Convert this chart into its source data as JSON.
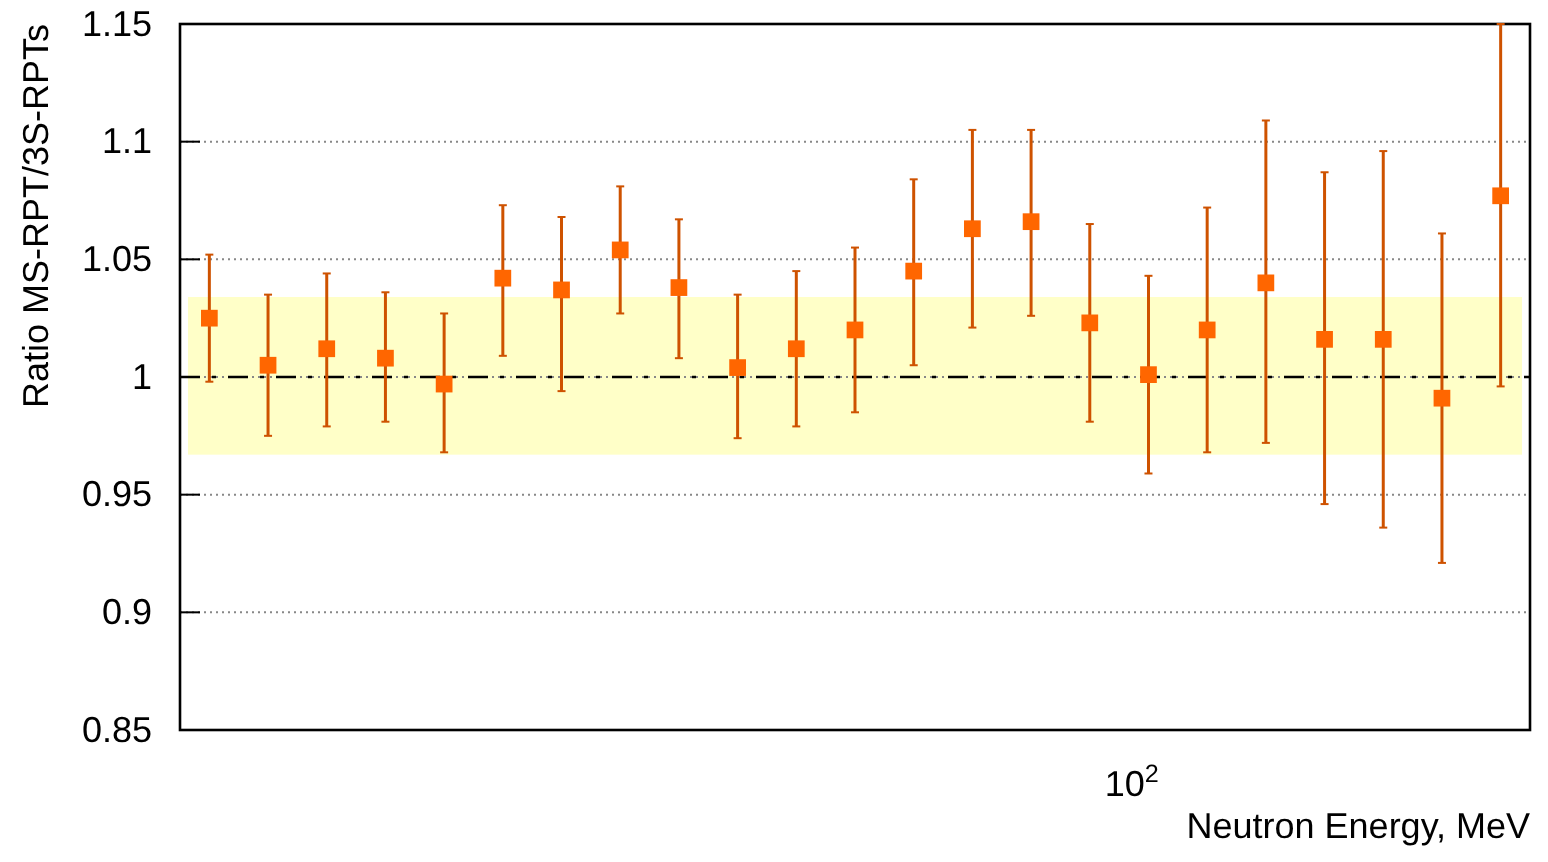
{
  "chart_data": {
    "type": "scatter",
    "xlabel": "Neutron Energy, MeV",
    "ylabel": "Ratio MS-RPT/3S-RPTs",
    "grid": "y",
    "marker": "square",
    "categories": [
      null,
      null,
      null,
      null,
      null,
      null,
      null,
      null,
      null,
      null,
      null,
      null,
      null,
      null,
      null,
      null,
      null,
      null,
      null,
      null,
      null,
      null,
      null
    ],
    "ylim": [
      0.85,
      1.15
    ],
    "yticks": [
      0.85,
      0.9,
      0.95,
      1,
      1.05,
      1.1,
      1.15
    ],
    "annotations": [
      "10$^{2}$"
    ],
    "bands": [
      {
        "axis": "y",
        "from": 0.967,
        "to": 1.034,
        "color": "#ffffc8"
      }
    ],
    "ref_lines": [
      {
        "axis": "y",
        "value": 1,
        "color": "#000000",
        "line_style": "dashdot"
      }
    ],
    "series": [
      {
        "color": "#ff6600",
        "values": [
          1.025,
          1.005,
          1.012,
          1.008,
          0.997,
          1.042,
          1.037,
          1.054,
          1.038,
          1.004,
          1.012,
          1.02,
          1.045,
          1.063,
          1.066,
          1.023,
          1.001,
          1.02,
          1.04,
          1.016,
          1.016,
          0.991,
          1.077
        ],
        "errors": [
          [
            0.998,
            1.052
          ],
          [
            0.975,
            1.035
          ],
          [
            0.979,
            1.044
          ],
          [
            0.981,
            1.036
          ],
          [
            0.968,
            1.027
          ],
          [
            1.009,
            1.073
          ],
          [
            0.994,
            1.068
          ],
          [
            1.027,
            1.081
          ],
          [
            1.008,
            1.067
          ],
          [
            0.974,
            1.035
          ],
          [
            0.979,
            1.045
          ],
          [
            0.985,
            1.055
          ],
          [
            1.005,
            1.084
          ],
          [
            1.021,
            1.105
          ],
          [
            1.026,
            1.105
          ],
          [
            0.981,
            1.065
          ],
          [
            0.959,
            1.043
          ],
          [
            0.968,
            1.072
          ],
          [
            0.972,
            1.109
          ],
          [
            0.946,
            1.087
          ],
          [
            0.936,
            1.096
          ],
          [
            0.921,
            1.061
          ],
          [
            0.996,
            1.15
          ]
        ]
      }
    ]
  }
}
